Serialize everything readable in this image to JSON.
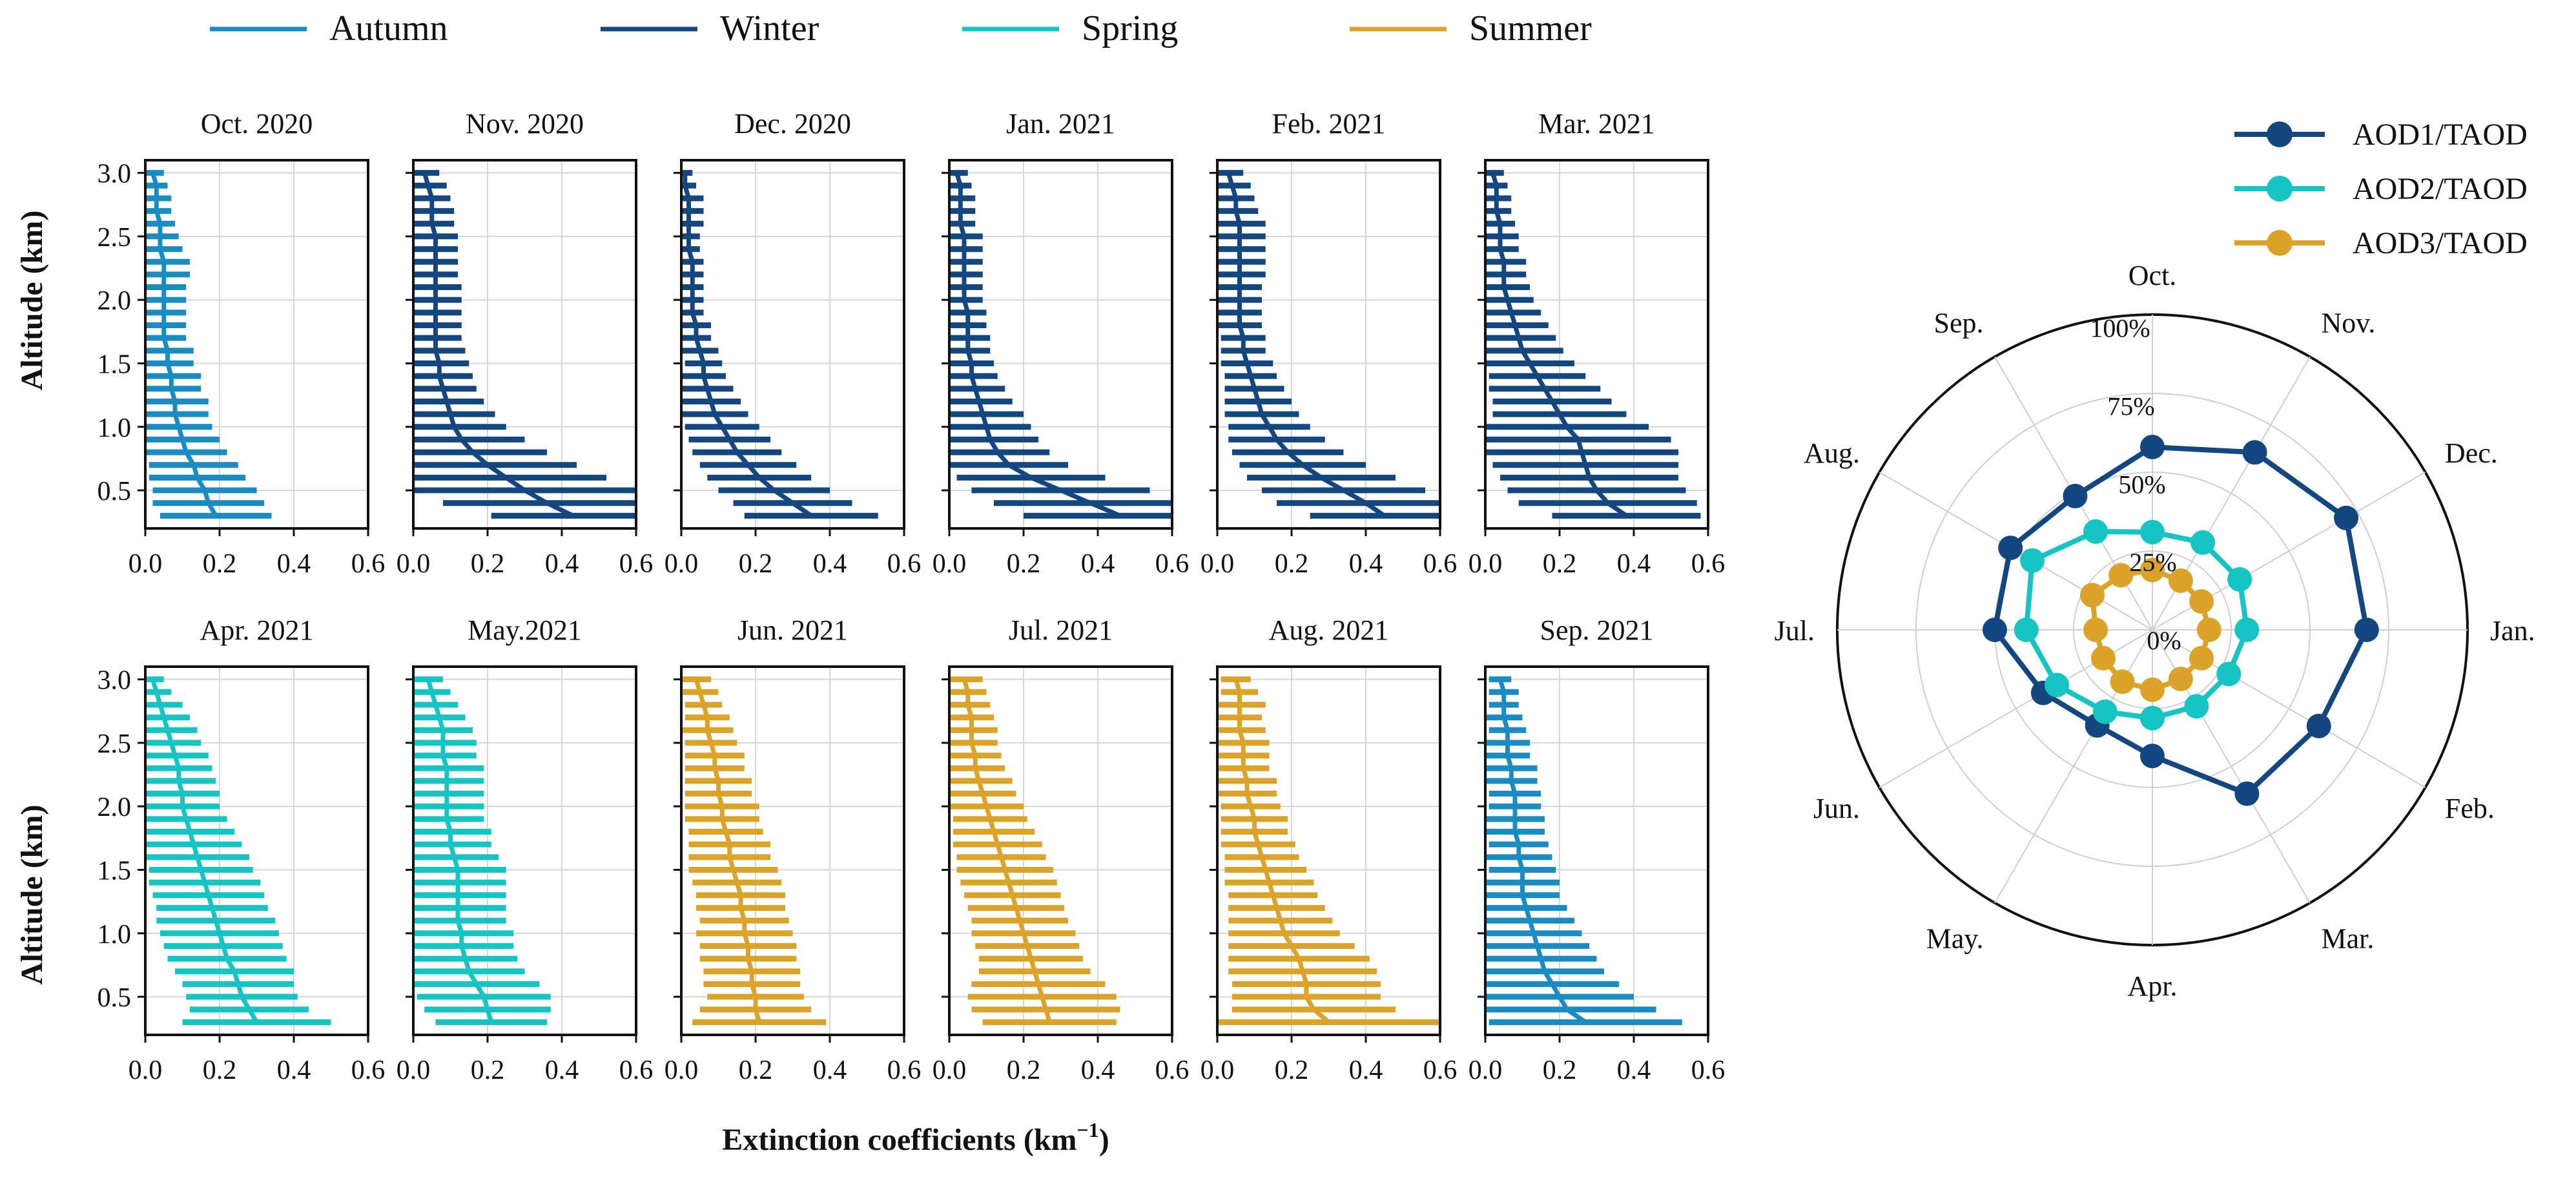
{
  "seasons": [
    {
      "key": "autumn",
      "name": "Autumn",
      "color": "#1a8cc1"
    },
    {
      "key": "winter",
      "name": "Winter",
      "color": "#14477f"
    },
    {
      "key": "spring",
      "name": "Spring",
      "color": "#17c4c4"
    },
    {
      "key": "summer",
      "name": "Summer",
      "color": "#dba32a"
    }
  ],
  "chart_data": [
    {
      "type": "line",
      "subtype": "vertical-profile-with-horizontal-error-bars",
      "xlabel_main": "Extinction coefficients (km",
      "xlabel_sup": "−1",
      "xlabel_tail": ")",
      "ylabel": "Altitude (km)",
      "xlim": [
        0,
        0.6
      ],
      "ylim": [
        0.2,
        3.1
      ],
      "xticks": [
        "0.0",
        "0.2",
        "0.4",
        "0.6"
      ],
      "yticks": [
        "0.5",
        "1.0",
        "1.5",
        "2.0",
        "2.5",
        "3.0"
      ],
      "altitude_km": [
        0.3,
        0.4,
        0.5,
        0.6,
        0.7,
        0.8,
        0.9,
        1.0,
        1.1,
        1.2,
        1.3,
        1.4,
        1.5,
        1.6,
        1.7,
        1.8,
        1.9,
        2.0,
        2.1,
        2.2,
        2.3,
        2.4,
        2.5,
        2.6,
        2.7,
        2.8,
        2.9,
        3.0
      ],
      "panels": [
        {
          "title": "Oct. 2020",
          "season": "autumn",
          "mean": [
            0.19,
            0.17,
            0.16,
            0.14,
            0.13,
            0.11,
            0.1,
            0.09,
            0.08,
            0.08,
            0.07,
            0.07,
            0.06,
            0.06,
            0.05,
            0.05,
            0.05,
            0.05,
            0.05,
            0.05,
            0.05,
            0.04,
            0.04,
            0.04,
            0.03,
            0.03,
            0.03,
            0.02
          ],
          "spread": [
            0.15,
            0.15,
            0.14,
            0.13,
            0.12,
            0.11,
            0.1,
            0.09,
            0.09,
            0.09,
            0.08,
            0.08,
            0.07,
            0.07,
            0.06,
            0.06,
            0.06,
            0.06,
            0.06,
            0.07,
            0.07,
            0.06,
            0.05,
            0.04,
            0.04,
            0.04,
            0.03,
            0.03
          ]
        },
        {
          "title": "Nov. 2020",
          "season": "winter",
          "mean": [
            0.43,
            0.36,
            0.3,
            0.25,
            0.2,
            0.16,
            0.13,
            0.11,
            0.1,
            0.09,
            0.08,
            0.07,
            0.07,
            0.06,
            0.06,
            0.06,
            0.06,
            0.06,
            0.06,
            0.06,
            0.06,
            0.06,
            0.06,
            0.05,
            0.05,
            0.05,
            0.04,
            0.03
          ],
          "spread": [
            0.22,
            0.28,
            0.3,
            0.27,
            0.24,
            0.2,
            0.17,
            0.14,
            0.12,
            0.1,
            0.09,
            0.09,
            0.08,
            0.08,
            0.07,
            0.07,
            0.07,
            0.07,
            0.07,
            0.06,
            0.06,
            0.06,
            0.06,
            0.06,
            0.06,
            0.05,
            0.05,
            0.04
          ]
        },
        {
          "title": "Dec. 2020",
          "season": "winter",
          "mean": [
            0.35,
            0.3,
            0.25,
            0.21,
            0.18,
            0.15,
            0.13,
            0.11,
            0.09,
            0.08,
            0.07,
            0.06,
            0.06,
            0.05,
            0.04,
            0.04,
            0.03,
            0.03,
            0.03,
            0.03,
            0.03,
            0.02,
            0.02,
            0.02,
            0.02,
            0.02,
            0.01,
            0.01
          ],
          "spread": [
            0.18,
            0.16,
            0.15,
            0.14,
            0.13,
            0.12,
            0.11,
            0.1,
            0.09,
            0.08,
            0.07,
            0.06,
            0.05,
            0.05,
            0.04,
            0.04,
            0.03,
            0.03,
            0.03,
            0.03,
            0.03,
            0.03,
            0.03,
            0.04,
            0.04,
            0.04,
            0.03,
            0.02
          ]
        },
        {
          "title": "Jan. 2021",
          "season": "winter",
          "mean": [
            0.46,
            0.38,
            0.3,
            0.22,
            0.16,
            0.13,
            0.11,
            0.1,
            0.09,
            0.08,
            0.07,
            0.06,
            0.06,
            0.05,
            0.05,
            0.05,
            0.05,
            0.04,
            0.04,
            0.04,
            0.04,
            0.04,
            0.04,
            0.03,
            0.03,
            0.03,
            0.03,
            0.02
          ],
          "spread": [
            0.26,
            0.26,
            0.24,
            0.2,
            0.16,
            0.14,
            0.13,
            0.12,
            0.11,
            0.09,
            0.08,
            0.07,
            0.06,
            0.06,
            0.06,
            0.05,
            0.05,
            0.05,
            0.05,
            0.05,
            0.05,
            0.05,
            0.05,
            0.04,
            0.04,
            0.04,
            0.03,
            0.03
          ]
        },
        {
          "title": "Feb. 2021",
          "season": "winter",
          "mean": [
            0.45,
            0.4,
            0.34,
            0.28,
            0.23,
            0.19,
            0.16,
            0.14,
            0.12,
            0.11,
            0.1,
            0.09,
            0.08,
            0.07,
            0.07,
            0.06,
            0.06,
            0.06,
            0.06,
            0.06,
            0.06,
            0.06,
            0.06,
            0.06,
            0.05,
            0.05,
            0.04,
            0.03
          ],
          "spread": [
            0.2,
            0.24,
            0.22,
            0.2,
            0.17,
            0.15,
            0.13,
            0.11,
            0.1,
            0.09,
            0.08,
            0.07,
            0.07,
            0.06,
            0.06,
            0.06,
            0.06,
            0.06,
            0.06,
            0.07,
            0.07,
            0.07,
            0.07,
            0.07,
            0.06,
            0.05,
            0.05,
            0.04
          ]
        },
        {
          "title": "Mar. 2021",
          "season": "winter",
          "mean": [
            0.38,
            0.33,
            0.3,
            0.28,
            0.27,
            0.26,
            0.25,
            0.22,
            0.2,
            0.18,
            0.16,
            0.14,
            0.12,
            0.1,
            0.09,
            0.08,
            0.07,
            0.06,
            0.05,
            0.05,
            0.05,
            0.04,
            0.04,
            0.04,
            0.03,
            0.03,
            0.03,
            0.02
          ],
          "spread": [
            0.2,
            0.24,
            0.24,
            0.24,
            0.25,
            0.26,
            0.25,
            0.22,
            0.18,
            0.16,
            0.15,
            0.13,
            0.12,
            0.11,
            0.1,
            0.09,
            0.08,
            0.07,
            0.07,
            0.06,
            0.06,
            0.05,
            0.05,
            0.04,
            0.04,
            0.04,
            0.03,
            0.03
          ]
        },
        {
          "title": "Apr. 2021",
          "season": "spring",
          "mean": [
            0.3,
            0.28,
            0.26,
            0.25,
            0.24,
            0.22,
            0.21,
            0.2,
            0.19,
            0.18,
            0.17,
            0.16,
            0.15,
            0.14,
            0.13,
            0.12,
            0.11,
            0.1,
            0.1,
            0.09,
            0.09,
            0.08,
            0.07,
            0.06,
            0.05,
            0.04,
            0.03,
            0.02
          ],
          "spread": [
            0.2,
            0.16,
            0.15,
            0.15,
            0.16,
            0.16,
            0.16,
            0.16,
            0.16,
            0.15,
            0.15,
            0.15,
            0.14,
            0.14,
            0.13,
            0.12,
            0.11,
            0.1,
            0.1,
            0.1,
            0.09,
            0.09,
            0.08,
            0.08,
            0.07,
            0.06,
            0.04,
            0.03
          ]
        },
        {
          "title": "May.2021",
          "season": "spring",
          "mean": [
            0.21,
            0.2,
            0.19,
            0.17,
            0.15,
            0.14,
            0.13,
            0.13,
            0.12,
            0.12,
            0.12,
            0.12,
            0.12,
            0.11,
            0.1,
            0.1,
            0.09,
            0.09,
            0.09,
            0.09,
            0.09,
            0.08,
            0.08,
            0.08,
            0.07,
            0.06,
            0.05,
            0.04
          ],
          "spread": [
            0.15,
            0.17,
            0.18,
            0.17,
            0.15,
            0.14,
            0.14,
            0.14,
            0.13,
            0.13,
            0.13,
            0.13,
            0.13,
            0.12,
            0.11,
            0.11,
            0.1,
            0.1,
            0.1,
            0.1,
            0.1,
            0.09,
            0.09,
            0.08,
            0.07,
            0.06,
            0.05,
            0.04
          ]
        },
        {
          "title": "Jun. 2021",
          "season": "summer",
          "mean": [
            0.21,
            0.2,
            0.2,
            0.19,
            0.19,
            0.18,
            0.18,
            0.17,
            0.17,
            0.16,
            0.16,
            0.15,
            0.14,
            0.13,
            0.13,
            0.12,
            0.11,
            0.11,
            0.1,
            0.1,
            0.09,
            0.09,
            0.08,
            0.07,
            0.07,
            0.06,
            0.05,
            0.04
          ],
          "spread": [
            0.18,
            0.15,
            0.13,
            0.13,
            0.13,
            0.13,
            0.13,
            0.13,
            0.12,
            0.12,
            0.12,
            0.12,
            0.12,
            0.11,
            0.11,
            0.1,
            0.1,
            0.1,
            0.09,
            0.09,
            0.08,
            0.08,
            0.07,
            0.07,
            0.06,
            0.05,
            0.05,
            0.04
          ]
        },
        {
          "title": "Jul. 2021",
          "season": "summer",
          "mean": [
            0.27,
            0.26,
            0.25,
            0.24,
            0.23,
            0.22,
            0.21,
            0.2,
            0.19,
            0.18,
            0.17,
            0.16,
            0.15,
            0.14,
            0.13,
            0.12,
            0.11,
            0.1,
            0.09,
            0.08,
            0.07,
            0.07,
            0.06,
            0.06,
            0.06,
            0.05,
            0.05,
            0.04
          ],
          "spread": [
            0.18,
            0.2,
            0.2,
            0.18,
            0.15,
            0.14,
            0.14,
            0.14,
            0.13,
            0.13,
            0.13,
            0.13,
            0.13,
            0.12,
            0.12,
            0.11,
            0.1,
            0.1,
            0.09,
            0.09,
            0.08,
            0.07,
            0.07,
            0.07,
            0.06,
            0.06,
            0.05,
            0.05
          ]
        },
        {
          "title": "Aug. 2021",
          "season": "summer",
          "mean": [
            0.3,
            0.26,
            0.24,
            0.24,
            0.23,
            0.22,
            0.2,
            0.18,
            0.17,
            0.16,
            0.15,
            0.14,
            0.13,
            0.12,
            0.11,
            0.1,
            0.1,
            0.09,
            0.08,
            0.08,
            0.07,
            0.07,
            0.07,
            0.06,
            0.06,
            0.06,
            0.06,
            0.05
          ],
          "spread": [
            0.3,
            0.22,
            0.2,
            0.2,
            0.2,
            0.19,
            0.17,
            0.15,
            0.14,
            0.13,
            0.12,
            0.12,
            0.11,
            0.1,
            0.1,
            0.09,
            0.09,
            0.08,
            0.08,
            0.08,
            0.07,
            0.07,
            0.07,
            0.07,
            0.06,
            0.07,
            0.05,
            0.04
          ]
        },
        {
          "title": "Sep. 2021",
          "season": "autumn",
          "mean": [
            0.27,
            0.22,
            0.2,
            0.18,
            0.16,
            0.15,
            0.14,
            0.13,
            0.12,
            0.11,
            0.1,
            0.1,
            0.1,
            0.09,
            0.09,
            0.08,
            0.08,
            0.08,
            0.08,
            0.07,
            0.07,
            0.06,
            0.06,
            0.06,
            0.05,
            0.05,
            0.05,
            0.04
          ],
          "spread": [
            0.26,
            0.24,
            0.2,
            0.18,
            0.16,
            0.15,
            0.14,
            0.13,
            0.12,
            0.11,
            0.1,
            0.1,
            0.09,
            0.09,
            0.08,
            0.08,
            0.08,
            0.07,
            0.07,
            0.07,
            0.07,
            0.06,
            0.06,
            0.05,
            0.05,
            0.04,
            0.04,
            0.03
          ]
        }
      ]
    },
    {
      "type": "radar",
      "categories": [
        "Oct.",
        "Nov.",
        "Dec.",
        "Jan.",
        "Feb.",
        "Mar.",
        "Apr.",
        "May.",
        "Jun.",
        "Jul.",
        "Aug.",
        "Sep."
      ],
      "rlim": [
        0,
        100
      ],
      "rticks": [
        "0%",
        "25%",
        "50%",
        "75%",
        "100%"
      ],
      "rtick_values": [
        0,
        25,
        50,
        75,
        100
      ],
      "series": [
        {
          "name": "AOD1/TAOD",
          "color": "#14477f",
          "values": [
            58,
            65,
            71,
            68,
            61,
            60,
            40,
            35,
            40,
            50,
            52,
            49
          ]
        },
        {
          "name": "AOD2/TAOD",
          "color": "#17c4c4",
          "values": [
            31,
            32,
            32,
            30,
            28,
            28,
            28,
            30,
            35,
            40,
            44,
            36
          ]
        },
        {
          "name": "AOD3/TAOD",
          "color": "#dba32a",
          "values": [
            19,
            18,
            18,
            18,
            18,
            18,
            19,
            19,
            18,
            18,
            22,
            20
          ]
        }
      ]
    }
  ]
}
